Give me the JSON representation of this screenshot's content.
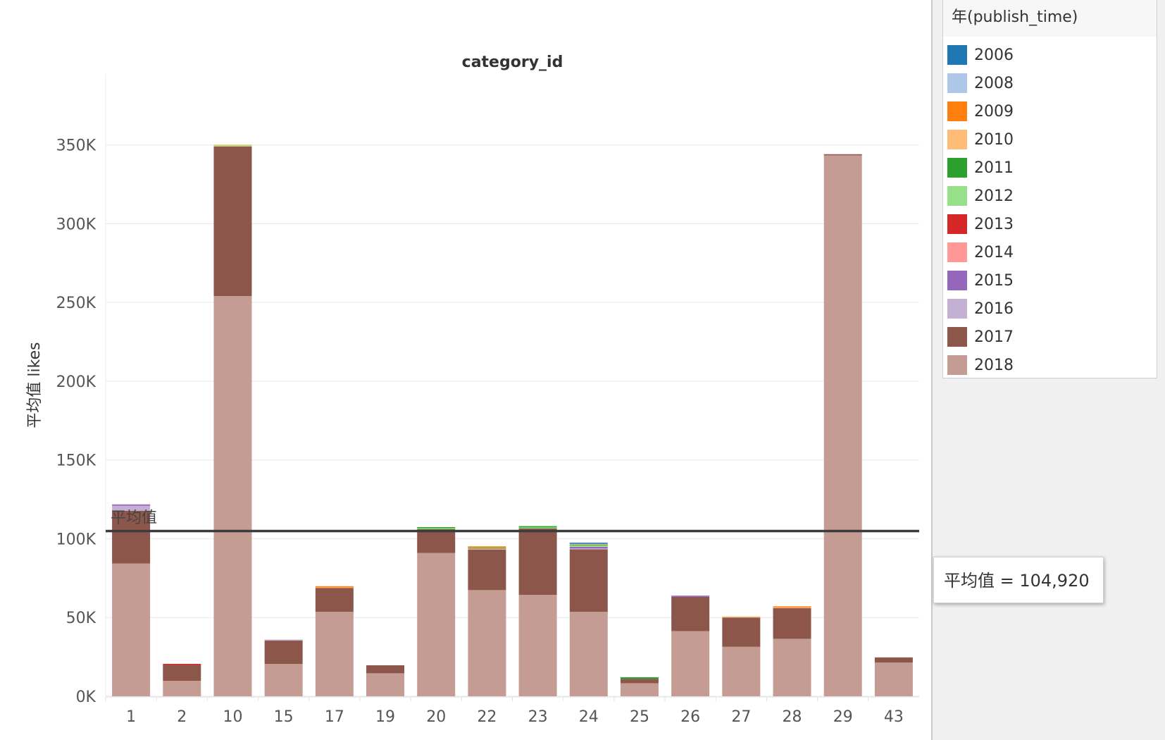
{
  "chart_data": {
    "type": "bar",
    "stacked": true,
    "title": "category_id",
    "xlabel": "",
    "ylabel": "平均值 likes",
    "ylim": [
      0,
      395000
    ],
    "y_ticks": [
      0,
      50000,
      100000,
      150000,
      200000,
      250000,
      300000,
      350000
    ],
    "y_tick_labels": [
      "0K",
      "50K",
      "100K",
      "150K",
      "200K",
      "250K",
      "300K",
      "350K"
    ],
    "categories": [
      "1",
      "2",
      "10",
      "15",
      "17",
      "19",
      "20",
      "22",
      "23",
      "24",
      "25",
      "26",
      "27",
      "28",
      "29",
      "43"
    ],
    "series": [
      {
        "name": "2006",
        "color": "#1f77b4",
        "values": [
          0,
          0,
          0,
          0,
          0,
          0,
          0,
          0,
          0,
          200,
          0,
          0,
          0,
          0,
          0,
          0
        ]
      },
      {
        "name": "2008",
        "color": "#aec7e8",
        "values": [
          0,
          0,
          0,
          0,
          0,
          0,
          0,
          0,
          0,
          400,
          0,
          0,
          0,
          0,
          0,
          0
        ]
      },
      {
        "name": "2009",
        "color": "#ff7f0e",
        "values": [
          0,
          0,
          0,
          0,
          500,
          0,
          0,
          300,
          0,
          0,
          0,
          0,
          0,
          500,
          0,
          0
        ]
      },
      {
        "name": "2010",
        "color": "#ffbb78",
        "values": [
          0,
          0,
          300,
          0,
          200,
          0,
          0,
          400,
          0,
          400,
          0,
          0,
          700,
          500,
          0,
          0
        ]
      },
      {
        "name": "2011",
        "color": "#2ca02c",
        "values": [
          0,
          0,
          0,
          0,
          0,
          0,
          700,
          300,
          800,
          600,
          1000,
          0,
          0,
          0,
          0,
          0
        ]
      },
      {
        "name": "2012",
        "color": "#98df8a",
        "values": [
          0,
          0,
          900,
          0,
          0,
          0,
          500,
          500,
          400,
          1000,
          0,
          0,
          0,
          0,
          0,
          0
        ]
      },
      {
        "name": "2013",
        "color": "#d62728",
        "values": [
          0,
          600,
          0,
          0,
          0,
          0,
          0,
          0,
          0,
          0,
          0,
          0,
          0,
          0,
          0,
          0
        ]
      },
      {
        "name": "2014",
        "color": "#ff9896",
        "values": [
          0,
          0,
          0,
          0,
          0,
          0,
          0,
          500,
          0,
          0,
          0,
          0,
          0,
          0,
          0,
          0
        ]
      },
      {
        "name": "2015",
        "color": "#9467bd",
        "values": [
          800,
          0,
          0,
          0,
          0,
          0,
          0,
          0,
          0,
          1000,
          0,
          700,
          0,
          0,
          0,
          0
        ]
      },
      {
        "name": "2016",
        "color": "#c5b0d5",
        "values": [
          3200,
          0,
          0,
          500,
          0,
          0,
          0,
          0,
          0,
          500,
          0,
          0,
          0,
          0,
          0,
          0
        ]
      },
      {
        "name": "2017",
        "color": "#8c564b",
        "values": [
          33500,
          10200,
          95000,
          15000,
          15600,
          5100,
          15200,
          25800,
          42400,
          39800,
          2800,
          21800,
          18600,
          19600,
          400,
          3300
        ]
      },
      {
        "name": "2018",
        "color": "#c49c94",
        "values": [
          84300,
          9800,
          254000,
          20500,
          53600,
          14600,
          91000,
          67400,
          64400,
          53600,
          8300,
          41400,
          31400,
          36500,
          343700,
          21400
        ]
      }
    ],
    "reference_line": {
      "label": "平均值",
      "value": 104920,
      "tooltip": "平均值 = 104,920"
    },
    "legend_position": "right",
    "grid": {
      "y": true,
      "x": false
    }
  },
  "legend": {
    "title": "年(publish_time)"
  },
  "tooltip": {
    "text": "平均值 = 104,920"
  }
}
